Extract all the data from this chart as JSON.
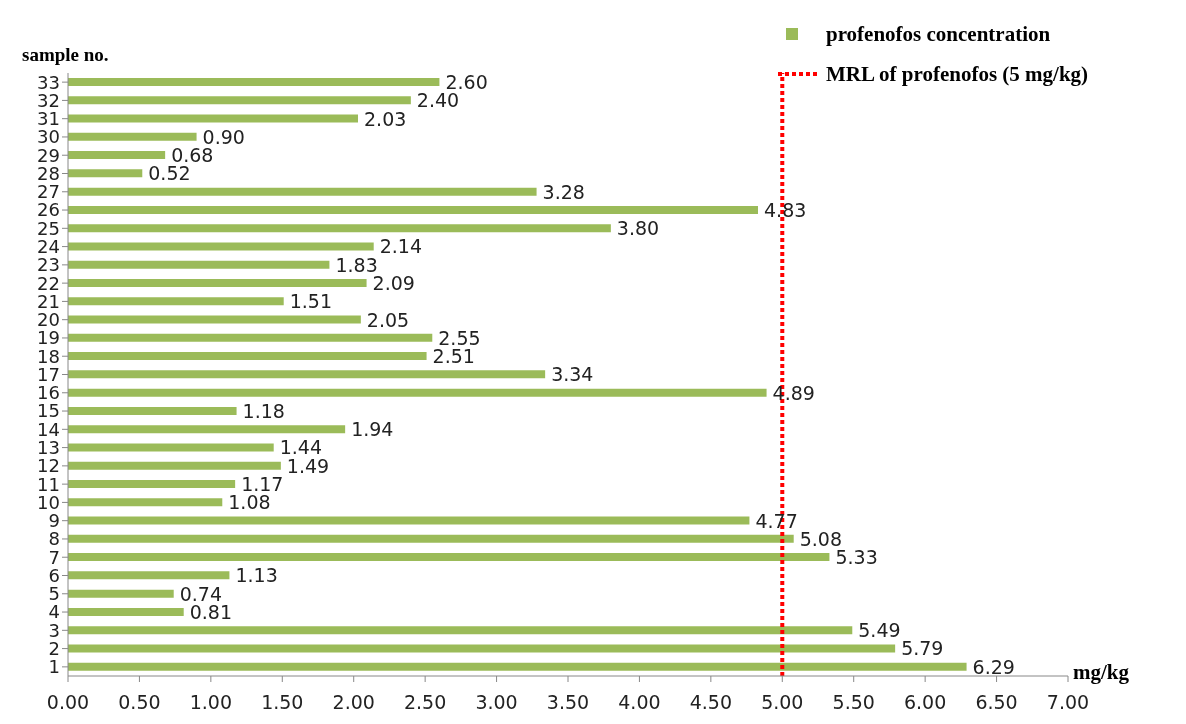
{
  "chart_data": {
    "type": "bar",
    "orientation": "horizontal",
    "ylabel": "sample no.",
    "xlabel": "mg/kg",
    "categories": [
      "33",
      "32",
      "31",
      "30",
      "29",
      "28",
      "27",
      "26",
      "25",
      "24",
      "23",
      "22",
      "21",
      "20",
      "19",
      "18",
      "17",
      "16",
      "15",
      "14",
      "13",
      "12",
      "11",
      "10",
      "9",
      "8",
      "7",
      "6",
      "5",
      "4",
      "3",
      "2",
      "1"
    ],
    "series": [
      {
        "name": "profenofos concentration",
        "color": "#9bbb59",
        "values": [
          2.6,
          2.4,
          2.03,
          0.9,
          0.68,
          0.52,
          3.28,
          4.83,
          3.8,
          2.14,
          1.83,
          2.09,
          1.51,
          2.05,
          2.55,
          2.51,
          3.34,
          4.89,
          1.18,
          1.94,
          1.44,
          1.49,
          1.17,
          1.08,
          4.77,
          5.08,
          5.33,
          1.13,
          0.74,
          0.81,
          5.49,
          5.79,
          6.29
        ],
        "value_labels": [
          "2.60",
          "2.40",
          "2.03",
          "0.90",
          "0.68",
          "0.52",
          "3.28",
          "4.83",
          "3.80",
          "2.14",
          "1.83",
          "2.09",
          "1.51",
          "2.05",
          "2.55",
          "2.51",
          "3.34",
          "4.89",
          "1.18",
          "1.94",
          "1.44",
          "1.49",
          "1.17",
          "1.08",
          "4.77",
          "5.08",
          "5.33",
          "1.13",
          "0.74",
          "0.81",
          "5.49",
          "5.79",
          "6.29"
        ]
      }
    ],
    "xlim": [
      0,
      7
    ],
    "xticks": [
      {
        "value": 0,
        "label": "0.00"
      },
      {
        "value": 0.5,
        "label": "0.50"
      },
      {
        "value": 1,
        "label": "1.00"
      },
      {
        "value": 1.5,
        "label": "1.50"
      },
      {
        "value": 2,
        "label": "2.00"
      },
      {
        "value": 2.5,
        "label": "2.50"
      },
      {
        "value": 3,
        "label": "3.00"
      },
      {
        "value": 3.5,
        "label": "3.50"
      },
      {
        "value": 4,
        "label": "4.00"
      },
      {
        "value": 4.5,
        "label": "4.50"
      },
      {
        "value": 5,
        "label": "5.00"
      },
      {
        "value": 5.5,
        "label": "5.50"
      },
      {
        "value": 6,
        "label": "6.00"
      },
      {
        "value": 6.5,
        "label": "6.50"
      },
      {
        "value": 7,
        "label": "7.00"
      }
    ],
    "ref_lines": [
      {
        "axis": "x",
        "value": 5,
        "label": "MRL of profenofos (5 mg/kg)",
        "color": "#ff0000",
        "line_style": "dotted"
      }
    ],
    "legend": "top right"
  }
}
